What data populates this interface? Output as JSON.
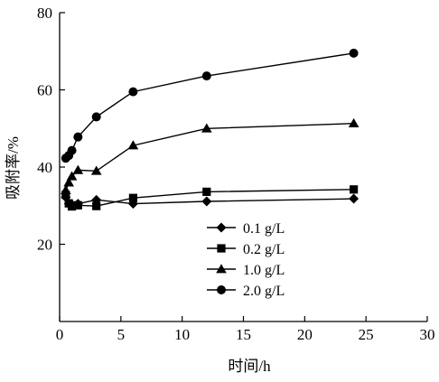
{
  "chart_data": {
    "type": "line",
    "xlabel": "时间/h",
    "ylabel": "吸附率/%",
    "xlim": [
      0,
      30
    ],
    "ylim": [
      0,
      80
    ],
    "xticks": [
      0,
      5,
      10,
      15,
      20,
      25,
      30
    ],
    "yticks": [
      20,
      40,
      60,
      80
    ],
    "grid": false,
    "legend_position": "lower-right",
    "series": [
      {
        "name": "0.1 g/L",
        "marker": "diamond",
        "x": [
          0.5,
          0.75,
          1,
          1.5,
          3,
          6,
          12,
          24
        ],
        "y": [
          32.2,
          30.5,
          30.3,
          30.5,
          31.5,
          30.5,
          31.1,
          31.8
        ]
      },
      {
        "name": "0.2 g/L",
        "marker": "square",
        "x": [
          0.5,
          0.75,
          1,
          1.5,
          3,
          6,
          12,
          24
        ],
        "y": [
          32.8,
          30.6,
          29.8,
          30.1,
          29.9,
          32.0,
          33.6,
          34.2
        ]
      },
      {
        "name": "1.0 g/L",
        "marker": "triangle",
        "x": [
          0.5,
          0.75,
          1,
          1.5,
          3,
          6,
          12,
          24
        ],
        "y": [
          34.0,
          36.0,
          37.6,
          39.2,
          39.0,
          45.6,
          50.0,
          51.3
        ]
      },
      {
        "name": "2.0 g/L",
        "marker": "circle",
        "x": [
          0.5,
          0.75,
          1,
          1.5,
          3,
          6,
          12,
          24
        ],
        "y": [
          42.3,
          43.0,
          44.3,
          47.8,
          53.0,
          59.5,
          63.6,
          69.5
        ]
      }
    ]
  }
}
